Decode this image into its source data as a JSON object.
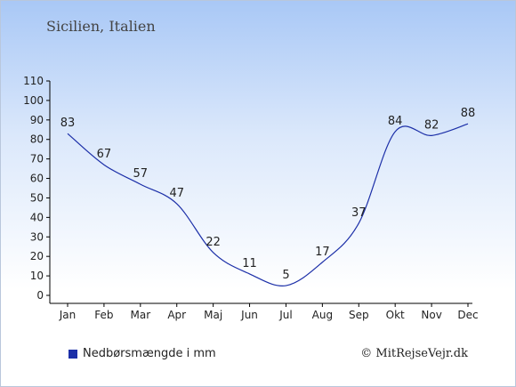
{
  "subtitle": "Sicilien, Italien",
  "credit": "© MitRejseVejr.dk",
  "colors": {
    "line": "#1c2fa8",
    "axis": "#000000",
    "label": "#222222"
  },
  "chart_data": {
    "type": "line",
    "title": "",
    "xlabel": "",
    "ylabel": "",
    "categories": [
      "Jan",
      "Feb",
      "Mar",
      "Apr",
      "Maj",
      "Jun",
      "Jul",
      "Aug",
      "Sep",
      "Okt",
      "Nov",
      "Dec"
    ],
    "series": [
      {
        "name": "Nedbørsmængde i mm",
        "values": [
          83,
          67,
          57,
          47,
          22,
          11,
          5,
          17,
          37,
          84,
          82,
          88
        ]
      }
    ],
    "ylim": [
      0,
      110
    ],
    "yticks": [
      0,
      10,
      20,
      30,
      40,
      50,
      60,
      70,
      80,
      90,
      100,
      110
    ],
    "grid": false,
    "legend_position": "bottom-left"
  }
}
